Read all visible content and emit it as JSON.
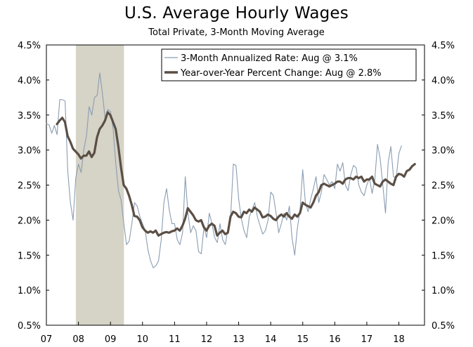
{
  "chart_data": {
    "type": "line",
    "title": "U.S. Average Hourly Wages",
    "subtitle": "Total Private, 3-Month Moving Average",
    "ylim": [
      0.5,
      4.5
    ],
    "xlim": [
      2007.0,
      2018.8
    ],
    "y_ticks": [
      "0.5%",
      "1.0%",
      "1.5%",
      "2.0%",
      "2.5%",
      "3.0%",
      "3.5%",
      "4.0%",
      "4.5%"
    ],
    "y_tick_values": [
      0.5,
      1.0,
      1.5,
      2.0,
      2.5,
      3.0,
      3.5,
      4.0,
      4.5
    ],
    "x_ticks": [
      "07",
      "08",
      "09",
      "10",
      "11",
      "12",
      "13",
      "14",
      "15",
      "16",
      "17",
      "18"
    ],
    "x_tick_values": [
      2007,
      2008,
      2009,
      2010,
      2011,
      2012,
      2013,
      2014,
      2015,
      2016,
      2017,
      2018
    ],
    "recession": [
      2007.92,
      2009.42
    ],
    "colors": {
      "annualized": "#8a9db2",
      "yoy": "#5b4f45",
      "recession": "#d6d3c7"
    },
    "series": [
      {
        "name": "3-Month Annualized Rate: Aug @ 3.1%",
        "start": 2007.0,
        "step": 0.083333,
        "values": [
          3.38,
          3.36,
          3.24,
          3.35,
          3.22,
          3.72,
          3.72,
          3.7,
          2.7,
          2.25,
          2.0,
          2.6,
          2.8,
          2.68,
          3.0,
          3.2,
          3.62,
          3.5,
          3.75,
          3.78,
          4.1,
          3.8,
          3.45,
          3.58,
          3.55,
          3.3,
          2.8,
          2.42,
          2.28,
          1.95,
          1.65,
          1.7,
          1.95,
          2.25,
          2.2,
          2.05,
          1.95,
          1.85,
          1.58,
          1.42,
          1.32,
          1.35,
          1.42,
          1.72,
          2.25,
          2.45,
          2.15,
          1.95,
          1.95,
          1.72,
          1.65,
          1.82,
          2.62,
          2.1,
          1.82,
          1.92,
          1.85,
          1.55,
          1.52,
          1.9,
          1.75,
          2.1,
          1.95,
          1.75,
          1.68,
          1.95,
          1.72,
          1.65,
          1.88,
          2.05,
          2.8,
          2.78,
          2.3,
          2.02,
          1.85,
          1.75,
          2.05,
          2.15,
          2.25,
          2.05,
          1.92,
          1.8,
          1.85,
          2.0,
          2.4,
          2.35,
          2.1,
          1.82,
          1.95,
          2.1,
          2.0,
          2.2,
          1.75,
          1.5,
          1.88,
          2.15,
          2.72,
          2.25,
          2.12,
          2.3,
          2.45,
          2.62,
          2.25,
          2.4,
          2.65,
          2.58,
          2.5,
          2.55,
          2.45,
          2.8,
          2.7,
          2.82,
          2.5,
          2.42,
          2.65,
          2.78,
          2.75,
          2.5,
          2.4,
          2.35,
          2.5,
          2.6,
          2.38,
          2.58,
          3.08,
          2.88,
          2.5,
          2.1,
          2.82,
          3.05,
          2.62,
          2.6,
          2.95,
          3.06
        ]
      },
      {
        "name": "Year-over-Year Percent Change: Aug @ 2.8%",
        "start": 2007.33,
        "step": 0.083333,
        "values": [
          3.37,
          3.42,
          3.46,
          3.4,
          3.2,
          3.12,
          3.02,
          2.98,
          2.94,
          2.88,
          2.92,
          2.92,
          2.98,
          2.9,
          2.96,
          3.18,
          3.3,
          3.35,
          3.42,
          3.54,
          3.5,
          3.4,
          3.3,
          3.05,
          2.75,
          2.5,
          2.45,
          2.35,
          2.22,
          2.06,
          2.05,
          2.0,
          1.9,
          1.85,
          1.82,
          1.84,
          1.82,
          1.85,
          1.78,
          1.8,
          1.82,
          1.83,
          1.82,
          1.84,
          1.85,
          1.88,
          1.85,
          1.92,
          2.02,
          2.17,
          2.12,
          2.07,
          2.0,
          1.98,
          2.0,
          1.9,
          1.85,
          1.92,
          1.95,
          1.92,
          1.78,
          1.82,
          1.85,
          1.8,
          1.82,
          2.05,
          2.12,
          2.1,
          2.05,
          2.04,
          2.12,
          2.1,
          2.15,
          2.12,
          2.18,
          2.15,
          2.12,
          2.04,
          2.05,
          2.08,
          2.06,
          2.02,
          2.0,
          2.05,
          2.08,
          2.05,
          2.1,
          2.05,
          2.02,
          2.08,
          2.05,
          2.1,
          2.25,
          2.22,
          2.2,
          2.18,
          2.25,
          2.35,
          2.4,
          2.5,
          2.52,
          2.5,
          2.48,
          2.5,
          2.52,
          2.55,
          2.55,
          2.52,
          2.58,
          2.6,
          2.6,
          2.58,
          2.62,
          2.6,
          2.62,
          2.55,
          2.58,
          2.58,
          2.62,
          2.52,
          2.5,
          2.48,
          2.55,
          2.58,
          2.55,
          2.52,
          2.5,
          2.62,
          2.66,
          2.65,
          2.62,
          2.7,
          2.72,
          2.77,
          2.8
        ]
      }
    ],
    "legend": {
      "position": "top-right",
      "entries": [
        "3-Month Annualized Rate: Aug @ 3.1%",
        "Year-over-Year Percent Change: Aug @ 2.8%"
      ]
    }
  }
}
